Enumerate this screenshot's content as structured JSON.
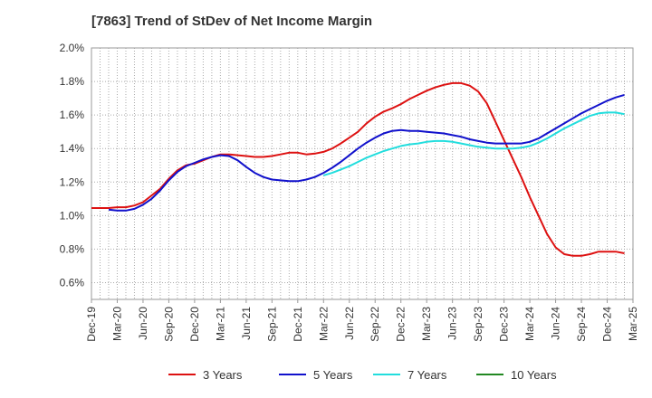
{
  "chart_data": {
    "type": "line",
    "title": "[7863]  Trend of StDev of Net Income Margin",
    "xlabel": "",
    "ylabel": "",
    "x_ticks": [
      "Dec-19",
      "Mar-20",
      "Jun-20",
      "Sep-20",
      "Dec-20",
      "Mar-21",
      "Jun-21",
      "Sep-21",
      "Dec-21",
      "Mar-22",
      "Jun-22",
      "Sep-22",
      "Dec-22",
      "Mar-23",
      "Jun-23",
      "Sep-23",
      "Dec-23",
      "Mar-24",
      "Jun-24",
      "Sep-24",
      "Dec-24",
      "Mar-25"
    ],
    "y_ticks": [
      "0.6%",
      "0.8%",
      "1.0%",
      "1.2%",
      "1.4%",
      "1.6%",
      "1.8%",
      "2.0%"
    ],
    "ylim": [
      0.5,
      2.0
    ],
    "grid": true,
    "legend_position": "bottom",
    "series": [
      {
        "name": "3 Years",
        "color": "#dd1111",
        "values": [
          [
            0,
            1.045
          ],
          [
            1,
            1.045
          ],
          [
            2,
            1.045
          ],
          [
            3,
            1.05
          ],
          [
            4,
            1.05
          ],
          [
            5,
            1.06
          ],
          [
            6,
            1.08
          ],
          [
            7,
            1.12
          ],
          [
            8,
            1.16
          ],
          [
            9,
            1.22
          ],
          [
            10,
            1.27
          ],
          [
            11,
            1.3
          ],
          [
            12,
            1.31
          ],
          [
            13,
            1.33
          ],
          [
            14,
            1.35
          ],
          [
            15,
            1.365
          ],
          [
            16,
            1.365
          ],
          [
            17,
            1.36
          ],
          [
            18,
            1.355
          ],
          [
            19,
            1.35
          ],
          [
            20,
            1.35
          ],
          [
            21,
            1.355
          ],
          [
            22,
            1.365
          ],
          [
            23,
            1.375
          ],
          [
            24,
            1.375
          ],
          [
            25,
            1.365
          ],
          [
            26,
            1.37
          ],
          [
            27,
            1.38
          ],
          [
            28,
            1.4
          ],
          [
            29,
            1.43
          ],
          [
            30,
            1.465
          ],
          [
            31,
            1.5
          ],
          [
            32,
            1.55
          ],
          [
            33,
            1.59
          ],
          [
            34,
            1.62
          ],
          [
            35,
            1.64
          ],
          [
            36,
            1.665
          ],
          [
            37,
            1.695
          ],
          [
            38,
            1.72
          ],
          [
            39,
            1.745
          ],
          [
            40,
            1.765
          ],
          [
            41,
            1.78
          ],
          [
            42,
            1.79
          ],
          [
            43,
            1.79
          ],
          [
            44,
            1.775
          ],
          [
            45,
            1.74
          ],
          [
            46,
            1.67
          ],
          [
            47,
            1.56
          ],
          [
            48,
            1.45
          ],
          [
            49,
            1.34
          ],
          [
            50,
            1.23
          ],
          [
            51,
            1.11
          ],
          [
            52,
            1.0
          ],
          [
            53,
            0.89
          ],
          [
            54,
            0.81
          ],
          [
            55,
            0.77
          ],
          [
            56,
            0.76
          ],
          [
            57,
            0.76
          ],
          [
            58,
            0.77
          ],
          [
            59,
            0.785
          ],
          [
            60,
            0.785
          ],
          [
            61,
            0.785
          ],
          [
            62,
            0.775
          ]
        ]
      },
      {
        "name": "5 Years",
        "color": "#1111cc",
        "values": [
          [
            2,
            1.035
          ],
          [
            3,
            1.03
          ],
          [
            4,
            1.03
          ],
          [
            5,
            1.04
          ],
          [
            6,
            1.065
          ],
          [
            7,
            1.1
          ],
          [
            8,
            1.15
          ],
          [
            9,
            1.21
          ],
          [
            10,
            1.26
          ],
          [
            11,
            1.295
          ],
          [
            12,
            1.315
          ],
          [
            13,
            1.335
          ],
          [
            14,
            1.35
          ],
          [
            15,
            1.36
          ],
          [
            16,
            1.355
          ],
          [
            17,
            1.33
          ],
          [
            18,
            1.29
          ],
          [
            19,
            1.255
          ],
          [
            20,
            1.23
          ],
          [
            21,
            1.215
          ],
          [
            22,
            1.21
          ],
          [
            23,
            1.205
          ],
          [
            24,
            1.205
          ],
          [
            25,
            1.215
          ],
          [
            26,
            1.23
          ],
          [
            27,
            1.255
          ],
          [
            28,
            1.285
          ],
          [
            29,
            1.32
          ],
          [
            30,
            1.36
          ],
          [
            31,
            1.4
          ],
          [
            32,
            1.435
          ],
          [
            33,
            1.465
          ],
          [
            34,
            1.49
          ],
          [
            35,
            1.505
          ],
          [
            36,
            1.51
          ],
          [
            37,
            1.505
          ],
          [
            38,
            1.505
          ],
          [
            39,
            1.5
          ],
          [
            40,
            1.495
          ],
          [
            41,
            1.49
          ],
          [
            42,
            1.48
          ],
          [
            43,
            1.47
          ],
          [
            44,
            1.455
          ],
          [
            45,
            1.445
          ],
          [
            46,
            1.435
          ],
          [
            47,
            1.43
          ],
          [
            48,
            1.43
          ],
          [
            49,
            1.43
          ],
          [
            50,
            1.43
          ],
          [
            51,
            1.44
          ],
          [
            52,
            1.46
          ],
          [
            53,
            1.49
          ],
          [
            54,
            1.52
          ],
          [
            55,
            1.55
          ],
          [
            56,
            1.58
          ],
          [
            57,
            1.61
          ],
          [
            58,
            1.635
          ],
          [
            59,
            1.66
          ],
          [
            60,
            1.685
          ],
          [
            61,
            1.705
          ],
          [
            62,
            1.72
          ]
        ]
      },
      {
        "name": "7 Years",
        "color": "#22dddd",
        "values": [
          [
            27,
            1.24
          ],
          [
            28,
            1.255
          ],
          [
            29,
            1.275
          ],
          [
            30,
            1.295
          ],
          [
            31,
            1.32
          ],
          [
            32,
            1.345
          ],
          [
            33,
            1.365
          ],
          [
            34,
            1.385
          ],
          [
            35,
            1.4
          ],
          [
            36,
            1.415
          ],
          [
            37,
            1.425
          ],
          [
            38,
            1.43
          ],
          [
            39,
            1.44
          ],
          [
            40,
            1.445
          ],
          [
            41,
            1.445
          ],
          [
            42,
            1.44
          ],
          [
            43,
            1.43
          ],
          [
            44,
            1.42
          ],
          [
            45,
            1.41
          ],
          [
            46,
            1.405
          ],
          [
            47,
            1.4
          ],
          [
            48,
            1.4
          ],
          [
            49,
            1.4
          ],
          [
            50,
            1.405
          ],
          [
            51,
            1.415
          ],
          [
            52,
            1.435
          ],
          [
            53,
            1.46
          ],
          [
            54,
            1.49
          ],
          [
            55,
            1.52
          ],
          [
            56,
            1.545
          ],
          [
            57,
            1.57
          ],
          [
            58,
            1.595
          ],
          [
            59,
            1.61
          ],
          [
            60,
            1.615
          ],
          [
            61,
            1.615
          ],
          [
            62,
            1.605
          ]
        ]
      },
      {
        "name": "10 Years",
        "color": "#228822",
        "values": []
      }
    ]
  }
}
